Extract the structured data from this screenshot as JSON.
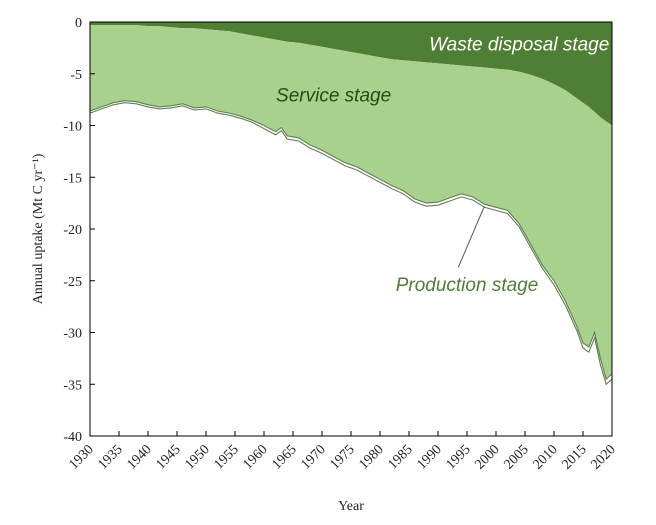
{
  "chart_data": {
    "type": "area",
    "xlabel": "Year",
    "ylabel": "Annual uptake (Mt C yr⁻¹)",
    "xlim": [
      1930,
      2020
    ],
    "ylim": [
      -40,
      0
    ],
    "x_ticks": [
      1930,
      1935,
      1940,
      1945,
      1950,
      1955,
      1960,
      1965,
      1970,
      1975,
      1980,
      1985,
      1990,
      1995,
      2000,
      2005,
      2010,
      2015,
      2020
    ],
    "y_ticks": [
      0,
      -5,
      -10,
      -15,
      -20,
      -25,
      -30,
      -35,
      -40
    ],
    "grid": false,
    "legend": "none",
    "years": [
      1930,
      1932,
      1934,
      1936,
      1938,
      1940,
      1942,
      1944,
      1946,
      1948,
      1950,
      1952,
      1954,
      1956,
      1958,
      1960,
      1962,
      1963,
      1964,
      1966,
      1968,
      1970,
      1972,
      1974,
      1976,
      1978,
      1980,
      1982,
      1984,
      1986,
      1988,
      1990,
      1992,
      1994,
      1996,
      1998,
      2000,
      2002,
      2004,
      2006,
      2008,
      2010,
      2012,
      2014,
      2015,
      2016,
      2017,
      2018,
      2019,
      2020
    ],
    "series": [
      {
        "name": "Waste disposal stage",
        "color": "#4e7f34",
        "values": [
          -0.3,
          -0.3,
          -0.3,
          -0.3,
          -0.3,
          -0.4,
          -0.4,
          -0.5,
          -0.6,
          -0.6,
          -0.7,
          -0.8,
          -0.9,
          -1.1,
          -1.3,
          -1.5,
          -1.7,
          -1.8,
          -1.9,
          -2.0,
          -2.2,
          -2.4,
          -2.6,
          -2.8,
          -3.0,
          -3.2,
          -3.4,
          -3.6,
          -3.7,
          -3.8,
          -3.9,
          -4.0,
          -4.1,
          -4.2,
          -4.3,
          -4.4,
          -4.5,
          -4.6,
          -4.8,
          -5.1,
          -5.5,
          -6.0,
          -6.6,
          -7.4,
          -7.8,
          -8.2,
          -8.7,
          -9.2,
          -9.6,
          -10.0
        ]
      },
      {
        "name": "Service stage",
        "color": "#a8d18d",
        "values": [
          -8.6,
          -8.2,
          -7.8,
          -7.6,
          -7.7,
          -8.0,
          -8.2,
          -8.1,
          -7.9,
          -8.3,
          -8.2,
          -8.6,
          -8.8,
          -9.1,
          -9.5,
          -10.0,
          -10.6,
          -10.2,
          -11.0,
          -11.2,
          -11.9,
          -12.4,
          -13.0,
          -13.6,
          -14.0,
          -14.6,
          -15.2,
          -15.8,
          -16.3,
          -17.1,
          -17.5,
          -17.4,
          -17.0,
          -16.6,
          -16.9,
          -17.6,
          -17.9,
          -18.2,
          -19.5,
          -21.5,
          -23.5,
          -25.0,
          -27.0,
          -29.5,
          -31.0,
          -31.4,
          -30.0,
          -32.5,
          -34.5,
          -34.0
        ]
      },
      {
        "name": "Production stage",
        "color": "#ffffff",
        "values": [
          -8.8,
          -8.4,
          -8.0,
          -7.8,
          -7.9,
          -8.2,
          -8.4,
          -8.3,
          -8.1,
          -8.5,
          -8.4,
          -8.8,
          -9.0,
          -9.3,
          -9.7,
          -10.3,
          -10.9,
          -10.5,
          -11.3,
          -11.5,
          -12.2,
          -12.7,
          -13.3,
          -13.9,
          -14.3,
          -14.9,
          -15.5,
          -16.1,
          -16.6,
          -17.4,
          -17.8,
          -17.7,
          -17.3,
          -16.9,
          -17.2,
          -17.9,
          -18.2,
          -18.5,
          -19.8,
          -21.8,
          -23.8,
          -25.4,
          -27.4,
          -29.9,
          -31.5,
          -31.9,
          -30.5,
          -33.1,
          -35.0,
          -34.5
        ]
      }
    ],
    "annotations": [
      {
        "text": "Waste disposal stage",
        "x": 2004,
        "y": -2.1,
        "color": "#ffffff",
        "target_x": null,
        "target_y": null
      },
      {
        "text": "Service stage",
        "x": 1972,
        "y": -7.0,
        "color": "#244d13",
        "target_x": null,
        "target_y": null
      },
      {
        "text": "Production stage",
        "x": 1995,
        "y": -25.3,
        "color": "#4e7f34",
        "target_x": 1998,
        "target_y": -17.8
      }
    ]
  }
}
